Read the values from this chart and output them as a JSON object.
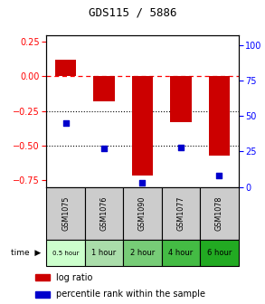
{
  "title": "GDS115 / 5886",
  "samples": [
    "GSM1075",
    "GSM1076",
    "GSM1090",
    "GSM1077",
    "GSM1078"
  ],
  "time_labels": [
    "0.5 hour",
    "1 hour",
    "2 hour",
    "4 hour",
    "6 hour"
  ],
  "time_colors": [
    "#ccffcc",
    "#aaddaa",
    "#77cc77",
    "#44bb44",
    "#22aa22"
  ],
  "log_ratio": [
    0.12,
    -0.18,
    -0.72,
    -0.33,
    -0.57
  ],
  "percentile_rank": [
    45,
    27,
    3,
    28,
    8
  ],
  "bar_color": "#cc0000",
  "dot_color": "#0000cc",
  "ylim_left": [
    -0.8,
    0.3
  ],
  "ylim_right": [
    0,
    107
  ],
  "yticks_left": [
    0.25,
    0.0,
    -0.25,
    -0.5,
    -0.75
  ],
  "yticks_right": [
    100,
    75,
    50,
    25,
    0
  ],
  "dotted_lines": [
    -0.25,
    -0.5
  ],
  "legend_log_ratio": "log ratio",
  "legend_percentile": "percentile rank within the sample",
  "sample_bg": "#cccccc",
  "plot_bg": "#ffffff"
}
